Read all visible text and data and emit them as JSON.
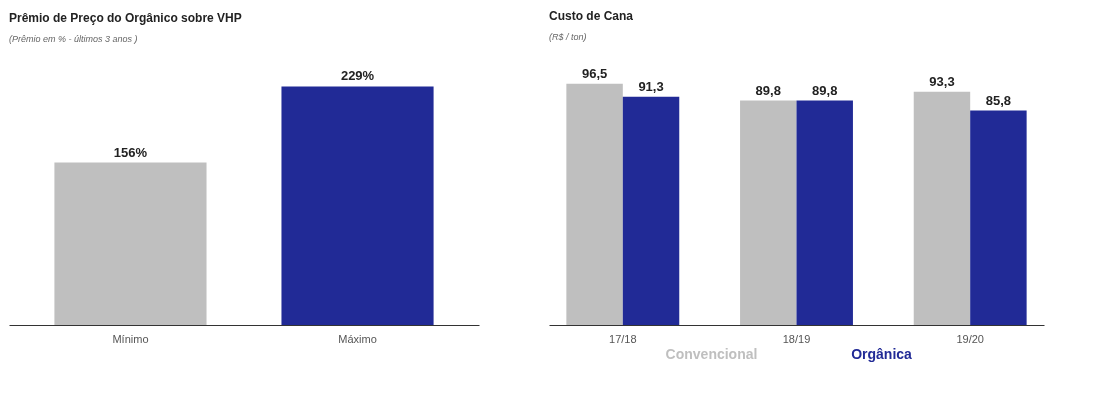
{
  "chart_data": [
    {
      "type": "bar",
      "title": "Prêmio de Preço do Orgânico sobre VHP",
      "subtitle": "(Prêmio em % - últimos 3 anos )",
      "categories": [
        "Mínimo",
        "Máximo"
      ],
      "values": [
        156,
        229
      ],
      "colors": [
        "#bfbfbf",
        "#212a96"
      ],
      "value_labels": [
        "156%",
        "229%"
      ]
    },
    {
      "type": "bar",
      "title": "Custo de Cana",
      "subtitle": "(R$ / ton)",
      "categories": [
        "17/18",
        "18/19",
        "19/20"
      ],
      "series": [
        {
          "name": "Convencional",
          "color": "#bfbfbf",
          "values": [
            96.5,
            89.8,
            93.3
          ],
          "value_labels": [
            "96,5",
            "89,8",
            "93,3"
          ]
        },
        {
          "name": "Orgânica",
          "color": "#212a96",
          "values": [
            91.3,
            89.8,
            85.8
          ],
          "value_labels": [
            "91,3",
            "89,8",
            "85,8"
          ]
        }
      ]
    }
  ]
}
